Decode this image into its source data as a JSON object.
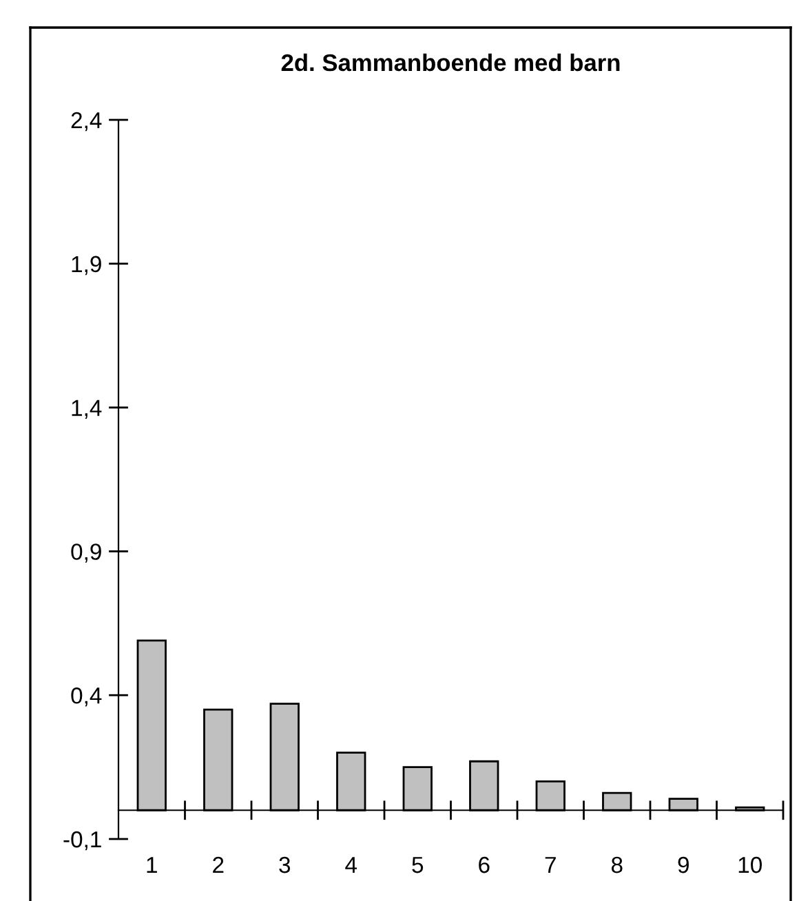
{
  "chart_data": {
    "type": "bar",
    "title": "2d. Sammanboende med barn",
    "categories": [
      "1",
      "2",
      "3",
      "4",
      "5",
      "6",
      "7",
      "8",
      "9",
      "10"
    ],
    "values": [
      0.59,
      0.35,
      0.37,
      0.2,
      0.15,
      0.17,
      0.1,
      0.06,
      0.04,
      0.01
    ],
    "color": "#c0c0c0",
    "ylim": [
      -0.1,
      2.4
    ],
    "yticks": [
      {
        "value": -0.1,
        "label": "-0,1"
      },
      {
        "value": 0.4,
        "label": "0,4"
      },
      {
        "value": 0.9,
        "label": "0,9"
      },
      {
        "value": 1.4,
        "label": "1,4"
      },
      {
        "value": 1.9,
        "label": "1,9"
      },
      {
        "value": 2.4,
        "label": "2,4"
      }
    ],
    "grid": false,
    "legend": false
  }
}
